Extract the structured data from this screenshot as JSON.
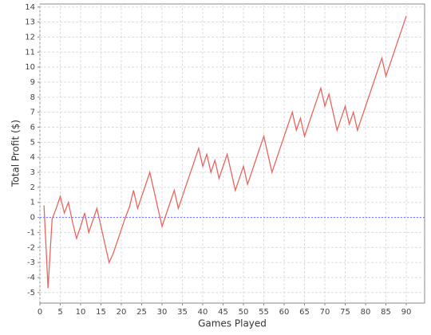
{
  "chart_data": {
    "type": "line",
    "x_label": "Games Played",
    "y_label": "Total Profit ($)",
    "x": [
      1,
      2,
      3,
      4,
      5,
      6,
      7,
      8,
      9,
      10,
      11,
      12,
      13,
      14,
      15,
      16,
      17,
      18,
      19,
      20,
      21,
      22,
      23,
      24,
      25,
      26,
      27,
      28,
      29,
      30,
      31,
      32,
      33,
      34,
      35,
      36,
      37,
      38,
      39,
      40,
      41,
      42,
      43,
      44,
      45,
      46,
      47,
      48,
      49,
      50,
      51,
      52,
      53,
      54,
      55,
      56,
      57,
      58,
      59,
      60,
      61,
      62,
      63,
      64,
      65,
      66,
      67,
      68,
      69,
      70,
      71,
      72,
      73,
      74,
      75,
      76,
      77,
      78,
      79,
      80,
      81,
      82,
      83,
      84,
      85,
      86,
      87,
      88,
      89,
      90
    ],
    "series": [
      {
        "color": "#e8665e",
        "values": [
          0.8,
          -4.7,
          -0.1,
          0.6,
          1.4,
          0.3,
          1.0,
          -0.3,
          -1.4,
          -0.6,
          0.3,
          -1.0,
          -0.2,
          0.6,
          -0.6,
          -1.8,
          -3.0,
          -2.4,
          -1.6,
          -0.8,
          0.0,
          0.7,
          1.8,
          0.6,
          1.4,
          2.2,
          3.0,
          1.8,
          0.6,
          -0.6,
          0.2,
          1.0,
          1.8,
          0.6,
          1.4,
          2.2,
          3.0,
          3.8,
          4.6,
          3.4,
          4.2,
          3.0,
          3.8,
          2.6,
          3.4,
          4.2,
          3.0,
          1.8,
          2.6,
          3.4,
          2.2,
          3.0,
          3.8,
          4.6,
          5.4,
          4.2,
          3.0,
          3.8,
          4.6,
          5.4,
          6.2,
          7.0,
          5.8,
          6.6,
          5.4,
          6.2,
          7.0,
          7.8,
          8.6,
          7.4,
          8.2,
          7.0,
          5.8,
          6.6,
          7.4,
          6.2,
          7.0,
          5.8,
          6.6,
          7.4,
          8.2,
          9.0,
          9.8,
          10.6,
          9.4,
          10.2,
          11.0,
          11.8,
          12.6,
          13.4
        ]
      }
    ],
    "reference_line": {
      "value": 0,
      "color": "#6b6bff"
    },
    "xlim": [
      0,
      94.5
    ],
    "ylim": [
      -5.7,
      14.2
    ],
    "xticks": [
      0,
      5,
      10,
      15,
      20,
      25,
      30,
      35,
      40,
      45,
      50,
      55,
      60,
      65,
      70,
      75,
      80,
      85,
      90
    ],
    "yticks": [
      -5,
      -4,
      -3,
      -2,
      -1,
      0,
      1,
      2,
      3,
      4,
      5,
      6,
      7,
      8,
      9,
      10,
      11,
      12,
      13,
      14
    ],
    "grid": true
  }
}
